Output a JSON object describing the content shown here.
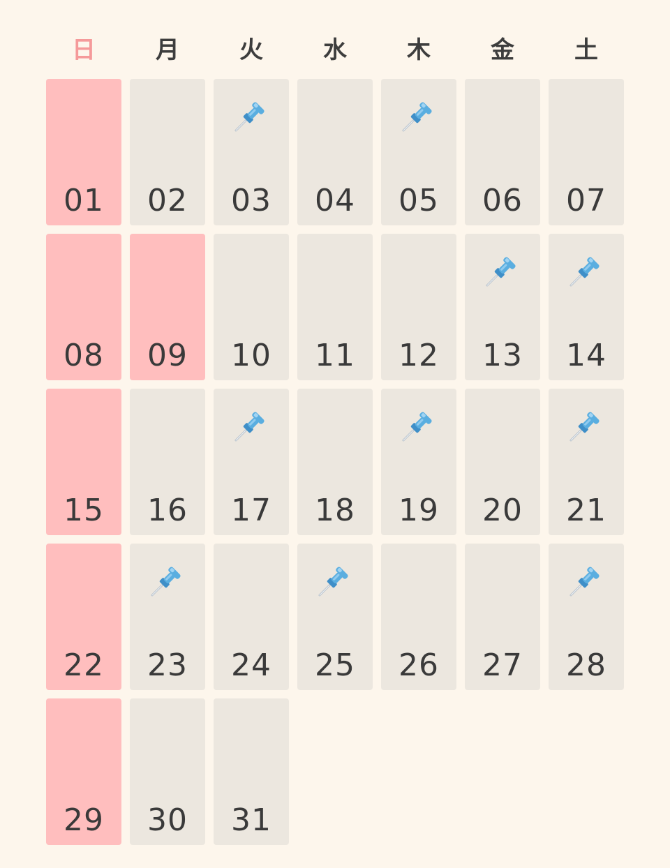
{
  "weekdays": [
    "日",
    "月",
    "火",
    "水",
    "木",
    "金",
    "土"
  ],
  "first_weekday_index": 0,
  "days": [
    {
      "label": "01",
      "holiday": true,
      "pinned": false
    },
    {
      "label": "02",
      "holiday": false,
      "pinned": false
    },
    {
      "label": "03",
      "holiday": false,
      "pinned": true
    },
    {
      "label": "04",
      "holiday": false,
      "pinned": false
    },
    {
      "label": "05",
      "holiday": false,
      "pinned": true
    },
    {
      "label": "06",
      "holiday": false,
      "pinned": false
    },
    {
      "label": "07",
      "holiday": false,
      "pinned": false
    },
    {
      "label": "08",
      "holiday": true,
      "pinned": false
    },
    {
      "label": "09",
      "holiday": true,
      "pinned": false
    },
    {
      "label": "10",
      "holiday": false,
      "pinned": false
    },
    {
      "label": "11",
      "holiday": false,
      "pinned": false
    },
    {
      "label": "12",
      "holiday": false,
      "pinned": false
    },
    {
      "label": "13",
      "holiday": false,
      "pinned": true
    },
    {
      "label": "14",
      "holiday": false,
      "pinned": true
    },
    {
      "label": "15",
      "holiday": true,
      "pinned": false
    },
    {
      "label": "16",
      "holiday": false,
      "pinned": false
    },
    {
      "label": "17",
      "holiday": false,
      "pinned": true
    },
    {
      "label": "18",
      "holiday": false,
      "pinned": false
    },
    {
      "label": "19",
      "holiday": false,
      "pinned": true
    },
    {
      "label": "20",
      "holiday": false,
      "pinned": false
    },
    {
      "label": "21",
      "holiday": false,
      "pinned": true
    },
    {
      "label": "22",
      "holiday": true,
      "pinned": false
    },
    {
      "label": "23",
      "holiday": false,
      "pinned": true
    },
    {
      "label": "24",
      "holiday": false,
      "pinned": false
    },
    {
      "label": "25",
      "holiday": false,
      "pinned": true
    },
    {
      "label": "26",
      "holiday": false,
      "pinned": false
    },
    {
      "label": "27",
      "holiday": false,
      "pinned": false
    },
    {
      "label": "28",
      "holiday": false,
      "pinned": true
    },
    {
      "label": "29",
      "holiday": true,
      "pinned": false
    },
    {
      "label": "30",
      "holiday": false,
      "pinned": false
    },
    {
      "label": "31",
      "holiday": false,
      "pinned": false
    }
  ],
  "pin_icon": "pushpin-icon",
  "colors": {
    "background": "#fdf6ec",
    "cell": "#ece7df",
    "holiday_cell": "#ffbebe",
    "sunday_header": "#f59a9a",
    "text": "#3a3a3a",
    "pin": "#5aaee0"
  }
}
